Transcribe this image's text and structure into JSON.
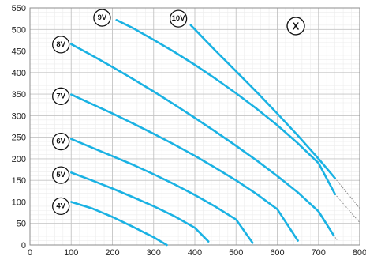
{
  "chart_data": {
    "type": "line",
    "title": "",
    "xlabel": "",
    "ylabel": "",
    "xlim": [
      0,
      800
    ],
    "ylim": [
      0,
      550
    ],
    "x_ticks": [
      "0",
      "100",
      "200",
      "300",
      "400",
      "500",
      "600",
      "700",
      "800"
    ],
    "y_ticks": [
      "0",
      "50",
      "100",
      "150",
      "200",
      "250",
      "300",
      "350",
      "400",
      "450",
      "500",
      "550"
    ],
    "grid": true,
    "minor_grid": true,
    "panel_label": "X",
    "line_color": "#1ab2e3",
    "series": [
      {
        "name": "4V",
        "x": [
          100,
          150,
          200,
          250,
          300,
          332
        ],
        "y": [
          100,
          85,
          65,
          42,
          18,
          0
        ]
      },
      {
        "name": "5V",
        "x": [
          100,
          150,
          200,
          250,
          300,
          350,
          400,
          433
        ],
        "y": [
          168,
          150,
          131,
          111,
          90,
          67,
          40,
          8
        ]
      },
      {
        "name": "6V",
        "x": [
          100,
          150,
          200,
          250,
          300,
          350,
          400,
          450,
          500,
          540
        ],
        "y": [
          246,
          226,
          206,
          186,
          164,
          141,
          116,
          89,
          59,
          5
        ]
      },
      {
        "name": "7V",
        "x": [
          100,
          150,
          200,
          250,
          300,
          350,
          400,
          450,
          500,
          550,
          600,
          650
        ],
        "y": [
          349,
          327,
          305,
          282,
          258,
          233,
          207,
          179,
          150,
          118,
          83,
          10
        ]
      },
      {
        "name": "8V",
        "x": [
          100,
          150,
          200,
          250,
          300,
          350,
          400,
          450,
          500,
          550,
          600,
          650,
          700,
          737
        ],
        "y": [
          466,
          440,
          413,
          385,
          356,
          326,
          295,
          263,
          230,
          196,
          160,
          122,
          78,
          22
        ]
      },
      {
        "name": "9V",
        "x": [
          210,
          250,
          300,
          350,
          400,
          450,
          500,
          550,
          600,
          650,
          700,
          740
        ],
        "y": [
          522,
          503,
          476,
          448,
          418,
          386,
          352,
          316,
          278,
          236,
          190,
          118
        ]
      },
      {
        "name": "10V",
        "x": [
          390,
          450,
          500,
          550,
          600,
          650,
          700,
          740
        ],
        "y": [
          510,
          451,
          403,
          355,
          305,
          254,
          200,
          155
        ]
      }
    ],
    "extensions": [
      {
        "from": [
          740,
          155
        ],
        "to": [
          800,
          85
        ]
      },
      {
        "from": [
          740,
          118
        ],
        "to": [
          800,
          52
        ]
      },
      {
        "from": [
          737,
          22
        ],
        "to": [
          745,
          12
        ]
      }
    ],
    "label_anchors": [
      {
        "text": "4V",
        "x": 75,
        "y": 90
      },
      {
        "text": "5V",
        "x": 75,
        "y": 162
      },
      {
        "text": "6V",
        "x": 75,
        "y": 240
      },
      {
        "text": "7V",
        "x": 75,
        "y": 345
      },
      {
        "text": "8V",
        "x": 75,
        "y": 465
      },
      {
        "text": "9V",
        "x": 175,
        "y": 527
      },
      {
        "text": "10V",
        "x": 360,
        "y": 525
      }
    ],
    "panel_anchor": {
      "x": 645,
      "y": 508
    }
  }
}
